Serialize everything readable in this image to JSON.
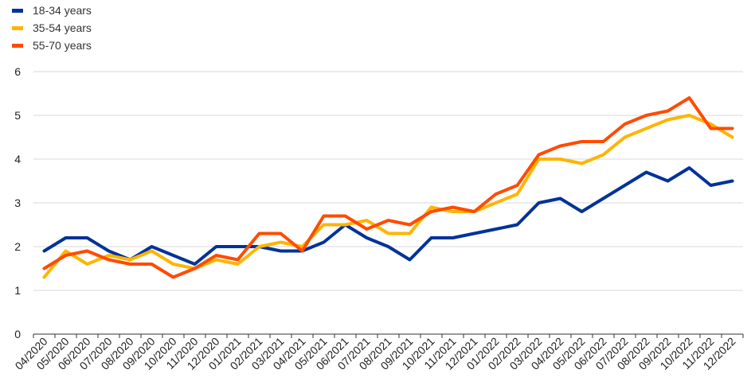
{
  "chart_data": {
    "type": "line",
    "title": "",
    "xlabel": "",
    "ylabel": "",
    "ylim": [
      0,
      6
    ],
    "yticks": [
      0,
      1,
      2,
      3,
      4,
      5,
      6
    ],
    "grid": "horizontal",
    "legend_position": "top-left",
    "categories": [
      "04/2020",
      "05/2020",
      "06/2020",
      "07/2020",
      "08/2020",
      "09/2020",
      "10/2020",
      "11/2020",
      "12/2020",
      "01/2021",
      "02/2021",
      "03/2021",
      "04/2021",
      "05/2021",
      "06/2021",
      "07/2021",
      "08/2021",
      "09/2021",
      "10/2021",
      "11/2021",
      "12/2021",
      "01/2022",
      "02/2022",
      "03/2022",
      "04/2022",
      "05/2022",
      "06/2022",
      "07/2022",
      "08/2022",
      "09/2022",
      "10/2022",
      "11/2022",
      "12/2022"
    ],
    "series": [
      {
        "name": "18-34 years",
        "color": "#003299",
        "values": [
          1.9,
          2.2,
          2.2,
          1.9,
          1.7,
          2.0,
          1.8,
          1.6,
          2.0,
          2.0,
          2.0,
          1.9,
          1.9,
          2.1,
          2.5,
          2.2,
          2.0,
          1.7,
          2.2,
          2.2,
          2.3,
          2.4,
          2.5,
          3.0,
          3.1,
          2.8,
          3.1,
          3.4,
          3.7,
          3.5,
          3.8,
          3.4,
          3.5
        ]
      },
      {
        "name": "35-54 years",
        "color": "#FFB400",
        "values": [
          1.3,
          1.9,
          1.6,
          1.8,
          1.7,
          1.9,
          1.6,
          1.5,
          1.7,
          1.6,
          2.0,
          2.1,
          2.0,
          2.5,
          2.5,
          2.6,
          2.3,
          2.3,
          2.9,
          2.8,
          2.8,
          3.0,
          3.2,
          4.0,
          4.0,
          3.9,
          4.1,
          4.5,
          4.7,
          4.9,
          5.0,
          4.8,
          4.5
        ]
      },
      {
        "name": "55-70 years",
        "color": "#FF4B00",
        "values": [
          1.5,
          1.8,
          1.9,
          1.7,
          1.6,
          1.6,
          1.3,
          1.5,
          1.8,
          1.7,
          2.3,
          2.3,
          1.9,
          2.7,
          2.7,
          2.4,
          2.6,
          2.5,
          2.8,
          2.9,
          2.8,
          3.2,
          3.4,
          4.1,
          4.3,
          4.4,
          4.4,
          4.8,
          5.0,
          5.1,
          5.4,
          4.7,
          4.7
        ]
      }
    ]
  }
}
